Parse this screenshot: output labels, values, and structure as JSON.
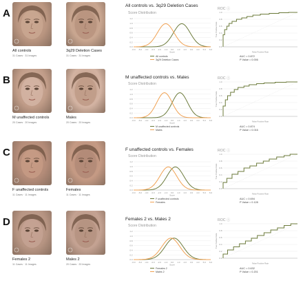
{
  "colors": {
    "controls": "#6b7a3a",
    "cases": "#f0a050",
    "roc": "#6b7a3a",
    "grid": "#e6e6e6",
    "axis": "#b0b0b0"
  },
  "panels": [
    {
      "letter": "A",
      "left_face": {
        "caption": "All controls",
        "meta": "31 Cases · 31 Images"
      },
      "right_face": {
        "caption": "3q29 Deletion Cases",
        "meta": "31 Cases · 31 Images"
      },
      "comparison_title": "All controls vs. 3q29 Deletion Cases",
      "score_title": "Score Distribution",
      "roc_title": "ROC ⓘ",
      "legend": [
        "All controls",
        "3q29 Deletion Cases"
      ],
      "auc": "AUC = 0.872",
      "pvalue": "P Value = 0.006"
    },
    {
      "letter": "B",
      "left_face": {
        "caption": "M unaffected controls",
        "meta": "20 Cases · 20 Images"
      },
      "right_face": {
        "caption": "Males",
        "meta": "20 Cases · 20 Images"
      },
      "comparison_title": "M unaffected controls vs. Males",
      "score_title": "Score Distribution",
      "roc_title": "ROC ⓘ",
      "legend": [
        "M unaffected controls",
        "Males"
      ],
      "auc": "AUC = 0.874",
      "pvalue": "P Value = 0.016"
    },
    {
      "letter": "C",
      "left_face": {
        "caption": "F unaffected controls",
        "meta": "11 Cases · 11 Images"
      },
      "right_face": {
        "caption": "Females",
        "meta": "11 Cases · 11 Images"
      },
      "comparison_title": "F unaffected controls vs. Females",
      "score_title": "Score Distribution",
      "roc_title": "ROC ⓘ",
      "legend": [
        "F unaffected controls",
        "Females"
      ],
      "auc": "AUC = 0.694",
      "pvalue": "P Value = 0.128"
    },
    {
      "letter": "D",
      "left_face": {
        "caption": "Females 2",
        "meta": "11 Cases · 11 Images"
      },
      "right_face": {
        "caption": "Males 2",
        "meta": "20 Cases · 20 Images"
      },
      "comparison_title": "Females 2 vs. Males 2",
      "score_title": "Score Distribution",
      "roc_title": "ROC ⓘ",
      "legend": [
        "Females 2",
        "Males 2"
      ],
      "auc": "AUC = 0.632",
      "pvalue": "P Value = 0.201"
    }
  ],
  "chart_data": [
    {
      "panel": "A",
      "type": "line",
      "chart": "score_distribution",
      "x": [
        -6,
        -5,
        -4,
        -3,
        -2,
        -1,
        0,
        1,
        2,
        3,
        4,
        5,
        6
      ],
      "series": [
        {
          "name": "All controls",
          "mean": 1.5,
          "sd": 1.3
        },
        {
          "name": "3q29 Deletion Cases",
          "mean": -1.0,
          "sd": 1.3
        }
      ],
      "xlim": [
        -6,
        6
      ],
      "ylim": [
        0,
        1.2
      ]
    },
    {
      "panel": "A",
      "type": "line",
      "chart": "roc",
      "x": [
        0,
        0.02,
        0.05,
        0.08,
        0.12,
        0.18,
        0.25,
        0.32,
        0.4,
        0.5,
        0.62,
        0.75,
        0.88,
        1
      ],
      "y": [
        0,
        0.35,
        0.5,
        0.6,
        0.68,
        0.74,
        0.8,
        0.84,
        0.88,
        0.92,
        0.95,
        0.97,
        0.99,
        1
      ],
      "xlim": [
        0,
        1
      ],
      "ylim": [
        0,
        1
      ]
    },
    {
      "panel": "B",
      "type": "line",
      "chart": "score_distribution",
      "x": [
        -6,
        -5,
        -4,
        -3,
        -2,
        -1,
        0,
        1,
        2,
        3,
        4,
        5,
        6
      ],
      "series": [
        {
          "name": "M unaffected controls",
          "mean": 1.2,
          "sd": 1.2
        },
        {
          "name": "Males",
          "mean": -1.2,
          "sd": 1.2
        }
      ],
      "xlim": [
        -6,
        6
      ],
      "ylim": [
        0,
        1.2
      ]
    },
    {
      "panel": "B",
      "type": "line",
      "chart": "roc",
      "x": [
        0,
        0.03,
        0.06,
        0.1,
        0.15,
        0.2,
        0.28,
        0.35,
        0.45,
        0.55,
        0.7,
        0.85,
        1
      ],
      "y": [
        0,
        0.3,
        0.48,
        0.6,
        0.7,
        0.78,
        0.84,
        0.88,
        0.92,
        0.95,
        0.97,
        0.99,
        1
      ],
      "xlim": [
        0,
        1
      ],
      "ylim": [
        0,
        1
      ]
    },
    {
      "panel": "C",
      "type": "line",
      "chart": "score_distribution",
      "x": [
        -6,
        -5,
        -4,
        -3,
        -2,
        -1,
        0,
        1,
        2,
        3,
        4,
        5,
        6
      ],
      "series": [
        {
          "name": "F unaffected controls",
          "mean": 0.5,
          "sd": 1.3
        },
        {
          "name": "Females",
          "mean": -0.6,
          "sd": 1.3
        }
      ],
      "xlim": [
        -6,
        6
      ],
      "ylim": [
        0,
        1.2
      ]
    },
    {
      "panel": "C",
      "type": "line",
      "chart": "roc",
      "x": [
        0,
        0.05,
        0.12,
        0.2,
        0.28,
        0.36,
        0.45,
        0.54,
        0.62,
        0.72,
        0.82,
        0.9,
        1
      ],
      "y": [
        0,
        0.18,
        0.3,
        0.42,
        0.5,
        0.6,
        0.66,
        0.74,
        0.8,
        0.86,
        0.92,
        0.96,
        1
      ],
      "xlim": [
        0,
        1
      ],
      "ylim": [
        0,
        1
      ]
    },
    {
      "panel": "D",
      "type": "line",
      "chart": "score_distribution",
      "x": [
        -6,
        -5,
        -4,
        -3,
        -2,
        -1,
        0,
        1,
        2,
        3,
        4,
        5,
        6
      ],
      "series": [
        {
          "name": "Females 2",
          "mean": 0.3,
          "sd": 1.4
        },
        {
          "name": "Males 2",
          "mean": -0.2,
          "sd": 1.4
        }
      ],
      "xlim": [
        -6,
        6
      ],
      "ylim": [
        0,
        1.2
      ]
    },
    {
      "panel": "D",
      "type": "line",
      "chart": "roc",
      "x": [
        0,
        0.06,
        0.14,
        0.22,
        0.3,
        0.38,
        0.46,
        0.55,
        0.64,
        0.73,
        0.82,
        0.91,
        1
      ],
      "y": [
        0,
        0.12,
        0.24,
        0.33,
        0.42,
        0.5,
        0.58,
        0.66,
        0.74,
        0.82,
        0.88,
        0.95,
        1
      ],
      "xlim": [
        0,
        1
      ],
      "ylim": [
        0,
        1
      ]
    }
  ]
}
